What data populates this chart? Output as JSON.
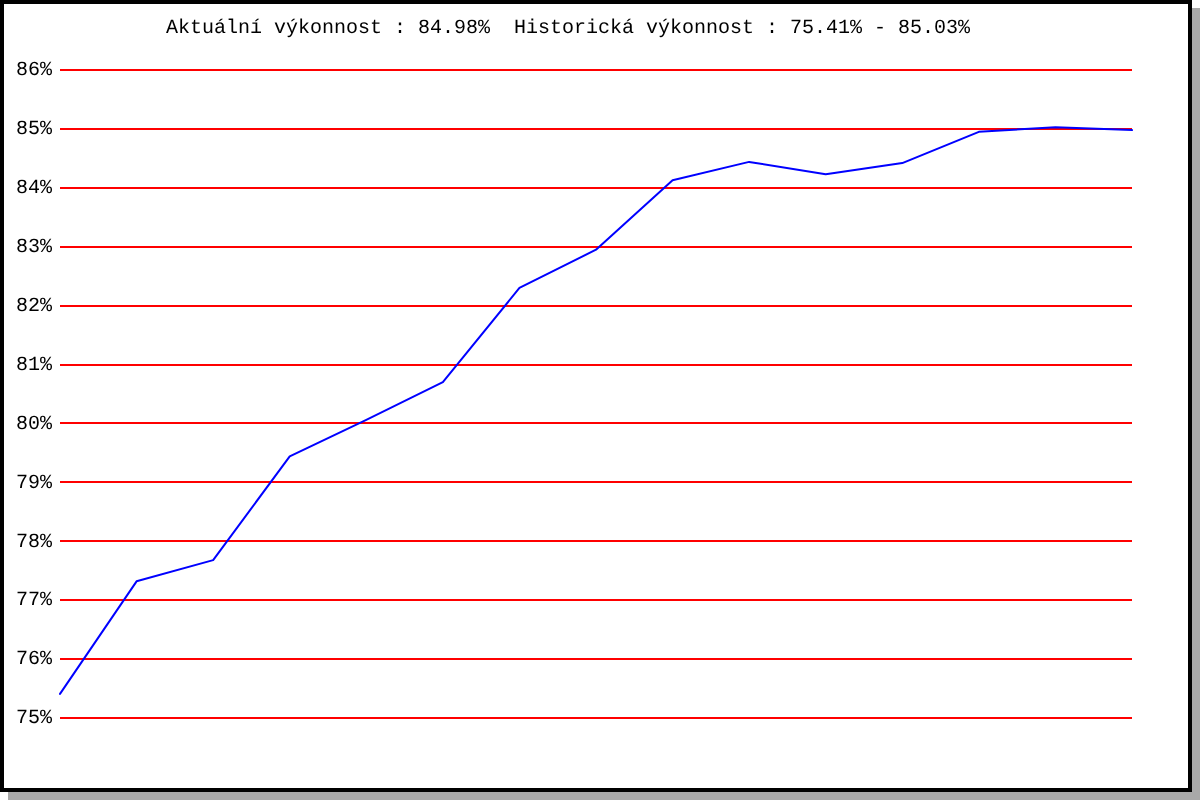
{
  "chart_data": {
    "type": "line",
    "title": "Aktuální výkonnost : 84.98%  Historická výkonnost : 75.41% - 85.03%",
    "categories": [
      null,
      null,
      null,
      null,
      null,
      null,
      null,
      null,
      null,
      null,
      null,
      null,
      null,
      null,
      null
    ],
    "series": [
      {
        "color": "#0000ff",
        "values": [
          75.41,
          77.32,
          77.68,
          79.44,
          80.06,
          80.7,
          82.3,
          82.95,
          84.13,
          84.44,
          84.23,
          84.42,
          84.95,
          85.03,
          84.98
        ]
      }
    ],
    "ylim": [
      75,
      86
    ],
    "yticks": [
      {
        "value": 75,
        "label": "75%"
      },
      {
        "value": 76,
        "label": "76%"
      },
      {
        "value": 77,
        "label": "77%"
      },
      {
        "value": 78,
        "label": "78%"
      },
      {
        "value": 79,
        "label": "79%"
      },
      {
        "value": 80,
        "label": "80%"
      },
      {
        "value": 81,
        "label": "81%"
      },
      {
        "value": 82,
        "label": "82%"
      },
      {
        "value": 83,
        "label": "83%"
      },
      {
        "value": 84,
        "label": "84%"
      },
      {
        "value": 85,
        "label": "85%"
      },
      {
        "value": 86,
        "label": "86%"
      }
    ],
    "grid": "y",
    "tick_labels": "y",
    "marker": "none"
  }
}
